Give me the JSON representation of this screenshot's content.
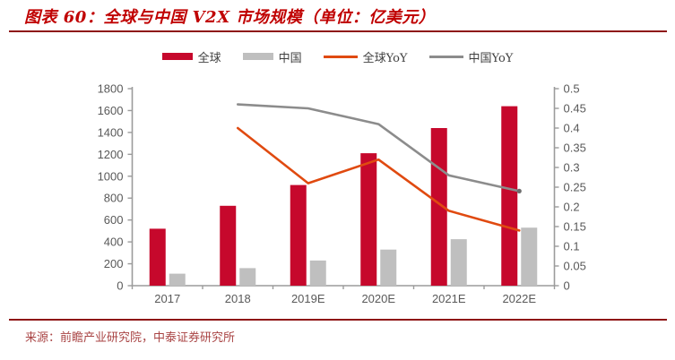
{
  "header": {
    "title": "图表 60：全球与中国 V2X 市场规模（单位：亿美元）"
  },
  "footer": {
    "source": "来源：前瞻产业研究院，中泰证券研究所"
  },
  "colors": {
    "title_red": "#C00000",
    "rule_red": "#8E1414",
    "source_red": "#A94444",
    "bar_global": "#C6082C",
    "bar_china": "#BFBFBF",
    "line_global_yoy": "#E04A10",
    "line_china_yoy": "#8C8C8C",
    "line_end_marker": "#6E6E6E",
    "axis_text": "#595959",
    "axis_line": "#9B9B9B"
  },
  "chart_data": {
    "type": "bar",
    "subtype": "combo bar + line, dual axis",
    "title": "全球与中国 V2X 市场规模（单位：亿美元）",
    "categories": [
      "2017",
      "2018",
      "2019E",
      "2020E",
      "2021E",
      "2022E"
    ],
    "series": [
      {
        "name": "全球",
        "type": "bar",
        "axis": "left",
        "values": [
          520,
          730,
          920,
          1210,
          1440,
          1640
        ]
      },
      {
        "name": "中国",
        "type": "bar",
        "axis": "left",
        "values": [
          110,
          160,
          230,
          330,
          425,
          530
        ]
      },
      {
        "name": "全球YoY",
        "type": "line",
        "axis": "right",
        "values": [
          null,
          0.4,
          0.26,
          0.32,
          0.19,
          0.14
        ]
      },
      {
        "name": "中国YoY",
        "type": "line",
        "axis": "right",
        "values": [
          null,
          0.46,
          0.45,
          0.41,
          0.28,
          0.24
        ]
      }
    ],
    "left_axis": {
      "min": 0,
      "max": 1800,
      "step": 200
    },
    "right_axis": {
      "min": 0,
      "max": 0.5,
      "step": 0.05
    },
    "xlabel": "",
    "ylabel_left": "",
    "ylabel_right": "",
    "legend_position": "top",
    "grid": false
  }
}
